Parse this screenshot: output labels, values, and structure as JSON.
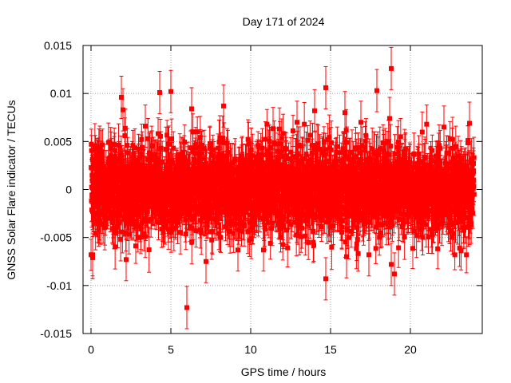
{
  "chart_data": {
    "type": "scatter",
    "title": "Day 171 of 2024",
    "xlabel": "GPS time / hours",
    "ylabel": "GNSS Solar Flare indicator / TECUs",
    "xlim": [
      -0.5,
      24.5
    ],
    "ylim": [
      -0.015,
      0.015
    ],
    "xticks": [
      0,
      5,
      10,
      15,
      20
    ],
    "xtick_labels": [
      "0",
      "5",
      "10",
      "15",
      "20"
    ],
    "yticks": [
      -0.015,
      -0.01,
      -0.005,
      0,
      0.005,
      0.01,
      0.015
    ],
    "ytick_labels": [
      "-0.015",
      "-0.01",
      "-0.005",
      "0",
      "0.005",
      "0.01",
      "0.015"
    ],
    "grid": true,
    "marker": "square",
    "errorbars": true,
    "colors": {
      "series": "#ff0000",
      "grid": "#a0a0a0",
      "axis": "#000000"
    },
    "series": [
      {
        "points": [
          [
            1.9,
            0.0096
          ],
          [
            2.0,
            0.0083
          ],
          [
            4.3,
            0.0101
          ],
          [
            5.0,
            0.0102
          ],
          [
            6.3,
            0.0084
          ],
          [
            8.3,
            0.0087
          ],
          [
            14.7,
            0.0106
          ],
          [
            17.9,
            0.0103
          ],
          [
            18.8,
            0.0126
          ],
          [
            18.7,
            0.0074
          ],
          [
            0.1,
            -0.0068
          ],
          [
            0.1,
            -0.0071
          ],
          [
            2.2,
            -0.0073
          ],
          [
            6.0,
            -0.0123
          ],
          [
            7.2,
            -0.0075
          ],
          [
            14.7,
            -0.0093
          ],
          [
            18.8,
            -0.0078
          ],
          [
            19.0,
            -0.0088
          ],
          [
            23.7,
            0.0069
          ],
          [
            14.0,
            0.0082
          ],
          [
            15.9,
            0.008
          ],
          [
            16.9,
            0.007
          ],
          [
            12.9,
            0.007
          ],
          [
            9.2,
            -0.0063
          ],
          [
            10.8,
            -0.0063
          ],
          [
            11.8,
            0.0063
          ],
          [
            3.4,
            0.0066
          ],
          [
            16.0,
            -0.007
          ],
          [
            17.4,
            -0.0068
          ],
          [
            22.1,
            0.0065
          ]
        ],
        "error": 0.0022
      }
    ],
    "noise_band": {
      "x_range": [
        0,
        24
      ],
      "approx_sigma": 0.0022,
      "approx_error": 0.0018,
      "point_count": 2880
    }
  }
}
